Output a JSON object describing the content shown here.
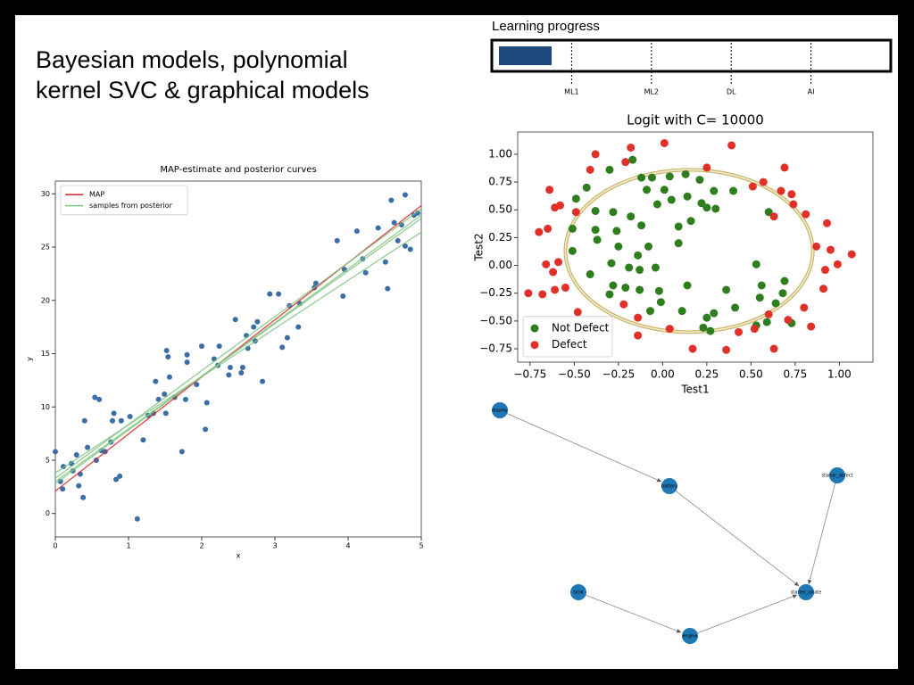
{
  "slide_title": "Bayesian models, polynomial kernel SVC & graphical models",
  "progress": {
    "label": "Learning progress",
    "value": 15,
    "range": [
      0,
      100
    ],
    "color": "#1f497d",
    "milestones": [
      {
        "label": "ML1",
        "at": 20
      },
      {
        "label": "ML2",
        "at": 40
      },
      {
        "label": "DL",
        "at": 60
      },
      {
        "label": "AI",
        "at": 80
      }
    ]
  },
  "chart_data": [
    {
      "type": "scatter",
      "title": "MAP-estimate and posterior curves",
      "x_label": "x",
      "y_label": "y",
      "xlim": [
        0,
        5
      ],
      "ylim": [
        -2.2,
        31.2
      ],
      "xticks": [
        0,
        1,
        2,
        3,
        4,
        5
      ],
      "yticks": [
        0,
        5,
        10,
        15,
        20,
        25,
        30
      ],
      "legend": "upper left",
      "color": "#3a6ea5",
      "x": [
        0,
        0.07,
        0.1,
        0.11,
        0.22,
        0.24,
        0.29,
        0.32,
        0.34,
        0.38,
        0.4,
        0.44,
        0.54,
        0.56,
        0.6,
        0.63,
        0.68,
        0.76,
        0.78,
        0.8,
        0.83,
        0.88,
        0.9,
        1.02,
        1.12,
        1.2,
        1.27,
        1.34,
        1.37,
        1.41,
        1.49,
        1.51,
        1.52,
        1.54,
        1.56,
        1.63,
        1.73,
        1.78,
        1.8,
        1.8,
        1.93,
        2.0,
        2.05,
        2.07,
        2.17,
        2.22,
        2.24,
        2.37,
        2.39,
        2.46,
        2.54,
        2.56,
        2.61,
        2.63,
        2.71,
        2.73,
        2.76,
        2.83,
        2.93,
        3.05,
        3.1,
        3.17,
        3.2,
        3.32,
        3.34,
        3.54,
        3.56,
        3.85,
        3.93,
        3.95,
        4.12,
        4.2,
        4.24,
        4.41,
        4.51,
        4.54,
        4.59,
        4.63,
        4.68,
        4.73,
        4.78,
        4.78,
        4.85,
        4.9,
        4.95
      ],
      "values": [
        5.8,
        3.0,
        2.3,
        4.4,
        4.7,
        4.0,
        5.5,
        2.6,
        3.7,
        1.5,
        8.7,
        6.2,
        10.9,
        5.0,
        10.7,
        5.9,
        5.8,
        6.7,
        8.7,
        9.4,
        3.2,
        3.5,
        8.7,
        9.1,
        -0.5,
        6.9,
        9.2,
        9.4,
        12.4,
        10.7,
        11.2,
        9.4,
        15.3,
        14.7,
        12.8,
        10.9,
        5.8,
        10.7,
        14.9,
        14.2,
        12.1,
        15.7,
        7.9,
        10.4,
        14.5,
        13.9,
        15.7,
        13.0,
        13.7,
        18.2,
        13.2,
        13.7,
        16.7,
        15.5,
        17.5,
        16.2,
        18.0,
        12.4,
        20.6,
        20.6,
        15.6,
        16.5,
        19.5,
        17.5,
        19.7,
        21.2,
        21.6,
        25.6,
        20.4,
        22.9,
        26.5,
        23.9,
        22.6,
        26.8,
        23.6,
        21.1,
        29.4,
        27.3,
        25.6,
        27.1,
        29.9,
        25.1,
        24.8,
        28.0,
        28.2
      ],
      "lines": [
        {
          "name": "MAP",
          "color": "#d62728",
          "segments": [
            {
              "x": [
                0,
                5
              ],
              "values": [
                2.1,
                28.9
              ]
            }
          ]
        },
        {
          "name": "samples from posterior",
          "color": "#7fc47f",
          "segments": [
            {
              "x": [
                0,
                5
              ],
              "values": [
                3.3,
                28.6
              ]
            },
            {
              "x": [
                0,
                5
              ],
              "values": [
                2.8,
                28.0
              ]
            },
            {
              "x": [
                0,
                5
              ],
              "values": [
                3.8,
                26.4
              ]
            },
            {
              "x": [
                0,
                5
              ],
              "values": [
                3.0,
                27.7
              ]
            }
          ]
        }
      ]
    },
    {
      "type": "scatter",
      "title": "Logit with C= 10000",
      "x_label": "Test1",
      "y_label": "Test2",
      "xlim": [
        -0.82,
        1.19
      ],
      "ylim": [
        -0.87,
        1.2
      ],
      "legend": "lower left",
      "xticks": [
        {
          "value": -0.75,
          "label": "−0.75"
        },
        {
          "value": -0.5,
          "label": "−0.50"
        },
        {
          "value": -0.25,
          "label": "−0.25"
        },
        {
          "value": 0,
          "label": "0.00"
        },
        {
          "value": 0.25,
          "label": "0.25"
        },
        {
          "value": 0.5,
          "label": "0.50"
        },
        {
          "value": 0.75,
          "label": "0.75"
        },
        {
          "value": 1,
          "label": "1.00"
        }
      ],
      "yticks": [
        {
          "value": -0.75,
          "label": "−0.75"
        },
        {
          "value": -0.5,
          "label": "−0.50"
        },
        {
          "value": -0.25,
          "label": "−0.25"
        },
        {
          "value": 0,
          "label": "0.00"
        },
        {
          "value": 0.25,
          "label": "0.25"
        },
        {
          "value": 0.5,
          "label": "0.50"
        },
        {
          "value": 0.75,
          "label": "0.75"
        },
        {
          "value": 1,
          "label": "1.00"
        }
      ],
      "boundary": {
        "center": [
          0.15,
          0.13
        ],
        "radii": [
          0.7,
          0.73
        ],
        "color": "#c9b46a"
      },
      "series": [
        {
          "name": "Not Defect",
          "color": "#2e7d1e",
          "x": [
            -0.17,
            -0.3,
            -0.43,
            -0.12,
            -0.09,
            0.04,
            0.13,
            -0.06,
            0.01,
            0.21,
            0.29,
            0.4,
            -0.49,
            -0.38,
            -0.28,
            -0.18,
            -0.03,
            0.05,
            0.14,
            0.22,
            0.25,
            0.3,
            0.6,
            -0.51,
            -0.38,
            -0.26,
            -0.12,
            0.09,
            0.16,
            -0.51,
            -0.37,
            -0.25,
            -0.14,
            -0.08,
            0.09,
            -0.29,
            -0.19,
            -0.13,
            -0.04,
            0.53,
            -0.41,
            -0.28,
            -0.21,
            -0.13,
            -0.02,
            0.14,
            0.36,
            0.56,
            0.69,
            0.68,
            -0.3,
            0.11,
            0.29,
            0.25,
            -0.01,
            -0.07,
            0.41,
            0.55,
            0.64,
            0.53,
            0.59,
            0.73,
            0.23,
            0.27
          ],
          "values": [
            0.95,
            0.86,
            0.7,
            0.79,
            0.68,
            0.8,
            0.82,
            0.79,
            0.68,
            0.77,
            0.67,
            0.67,
            0.6,
            0.49,
            0.48,
            0.44,
            0.55,
            0.59,
            0.62,
            0.56,
            0.52,
            0.51,
            0.48,
            0.33,
            0.32,
            0.31,
            0.36,
            0.35,
            0.4,
            0.13,
            0.23,
            0.17,
            0.09,
            0.17,
            0.2,
            0.02,
            -0.02,
            -0.04,
            -0.02,
            0.01,
            -0.08,
            -0.18,
            -0.2,
            -0.22,
            -0.23,
            -0.18,
            -0.22,
            -0.18,
            -0.14,
            -0.25,
            -0.26,
            -0.41,
            -0.43,
            -0.47,
            -0.33,
            -0.41,
            -0.38,
            -0.29,
            -0.34,
            -0.54,
            -0.51,
            -0.52,
            -0.56,
            -0.59
          ]
        },
        {
          "name": "Defect",
          "color": "#e0302a",
          "x": [
            -0.38,
            -0.18,
            0.01,
            0.25,
            0.39,
            0.51,
            0.57,
            0.69,
            0.67,
            0.73,
            -0.64,
            -0.58,
            -0.49,
            -0.21,
            -0.41,
            -0.7,
            -0.65,
            -0.61,
            -0.66,
            -0.59,
            -0.62,
            -0.61,
            -0.55,
            -0.68,
            -0.76,
            -0.48,
            -0.48,
            -0.14,
            0.04,
            0.17,
            0.36,
            0.43,
            0.52,
            0.63,
            0.71,
            0.84,
            0.8,
            0.91,
            0.92,
            0.99,
            1.07,
            0.95,
            0.87,
            0.93,
            0.81,
            0.74,
            0.63,
            -0.14,
            0.6,
            -0.22
          ],
          "values": [
            1.0,
            1.06,
            1.1,
            0.88,
            1.08,
            0.71,
            0.75,
            0.88,
            0.67,
            0.64,
            0.68,
            0.54,
            0.48,
            0.93,
            0.86,
            0.3,
            0.33,
            0.52,
            0.01,
            0.03,
            -0.06,
            -0.22,
            -0.2,
            -0.26,
            -0.25,
            -0.42,
            -0.63,
            -0.63,
            -0.57,
            -0.75,
            -0.76,
            -0.6,
            -0.57,
            -0.75,
            -0.49,
            -0.55,
            -0.38,
            -0.21,
            -0.04,
            0.01,
            0.1,
            0.14,
            0.17,
            0.38,
            0.46,
            0.55,
            0.44,
            -0.47,
            -0.44,
            -0.35
          ]
        }
      ]
    }
  ],
  "graph": {
    "nodes": [
      "display",
      "battery",
      "starter_defect",
      "tank",
      "starter_rotate",
      "engine"
    ]
  }
}
